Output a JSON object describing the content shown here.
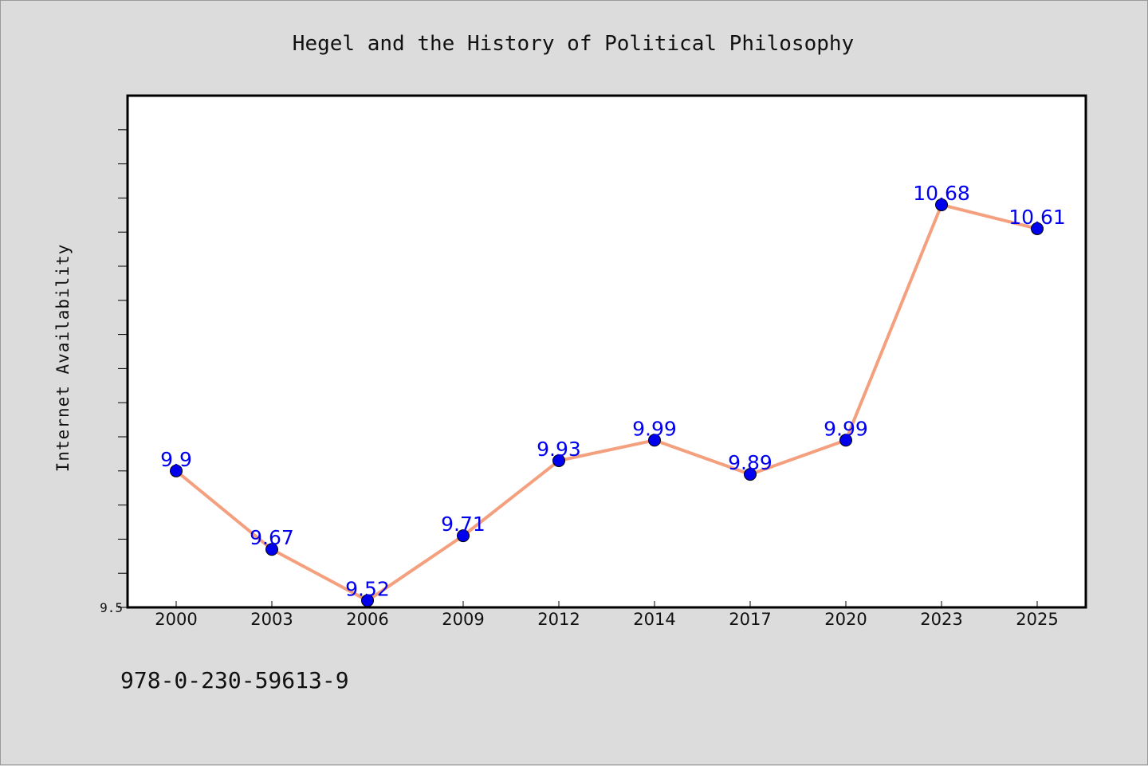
{
  "chart_data": {
    "type": "line",
    "title": "Hegel and the History of Political Philosophy",
    "ylabel": "Internet Availability",
    "xlabel": "",
    "categories": [
      "2000",
      "2003",
      "2006",
      "2009",
      "2012",
      "2014",
      "2017",
      "2020",
      "2023",
      "2025"
    ],
    "series": [
      {
        "values": [
          9.9,
          9.67,
          9.52,
          9.71,
          9.93,
          9.99,
          9.89,
          9.99,
          10.68,
          10.61
        ]
      }
    ],
    "ylim": [
      9.5,
      11.0
    ],
    "yticks_labeled": [
      "9.5"
    ],
    "grid": false,
    "legend": "none",
    "line_color": "#f4a07e",
    "marker_color": "#0000ee",
    "label_color": "#0000ee"
  },
  "footer": {
    "isbn": "978-0-230-59613-9"
  }
}
